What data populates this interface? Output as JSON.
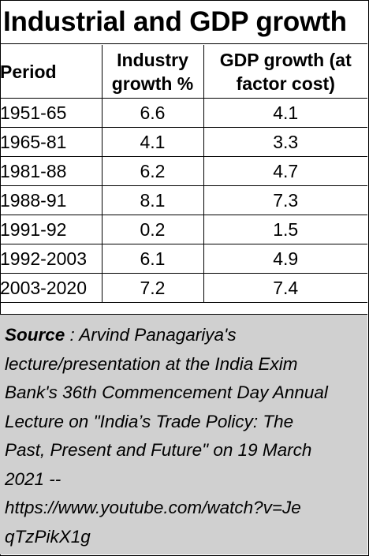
{
  "title": "Industrial and GDP growth",
  "chart_data": {
    "type": "table",
    "title": "Industrial and GDP growth",
    "columns": [
      "Period",
      "Industry growth %",
      "GDP growth (at factor cost)"
    ],
    "rows": [
      {
        "period": "1951-65",
        "industry": "6.6",
        "gdp": "4.1"
      },
      {
        "period": "1965-81",
        "industry": "4.1",
        "gdp": "3.3"
      },
      {
        "period": "1981-88",
        "industry": "6.2",
        "gdp": "4.7"
      },
      {
        "period": "1988-91",
        "industry": "8.1",
        "gdp": "7.3"
      },
      {
        "period": "1991-92",
        "industry": "0.2",
        "gdp": "1.5"
      },
      {
        "period": "1992-2003",
        "industry": "6.1",
        "gdp": "4.9"
      },
      {
        "period": "2003-2020",
        "industry": "7.2",
        "gdp": "7.4"
      }
    ]
  },
  "header": {
    "period": "Period",
    "industry_line1": "Industry",
    "industry_line2": "growth %",
    "gdp_line1": "GDP growth (at",
    "gdp_line2": "factor cost)"
  },
  "source": {
    "label": "Source",
    "lines": [
      " : Arvind Panagariya's",
      "lecture/presentation at the India Exim",
      "Bank's 36th Commencement Day Annual",
      "Lecture on \"India’s Trade Policy: The",
      "Past, Present and Future\" on 19 March",
      "2021 --",
      "https://www.youtube.com/watch?v=Je",
      "qTzPikX1g"
    ]
  }
}
